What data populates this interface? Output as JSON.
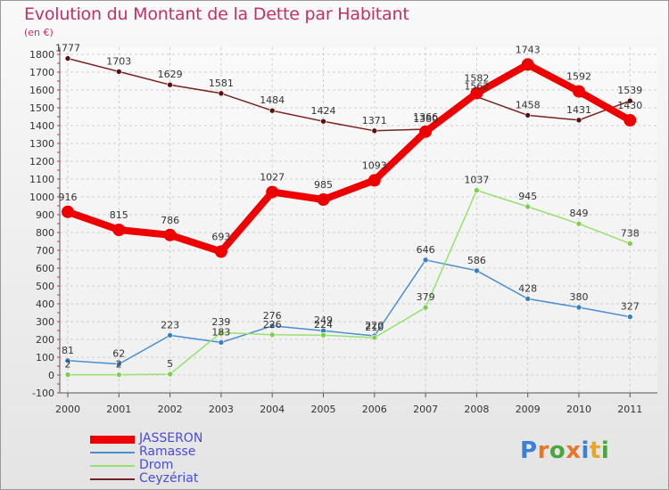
{
  "title": "Evolution du Montant de la Dette par Habitant",
  "unit": "(en €)",
  "logo": {
    "letters": [
      "P",
      "r",
      "o",
      "x",
      "i",
      "t",
      "i"
    ],
    "colors": [
      "#3a7fd8",
      "#e8762a",
      "#4aa640",
      "#e8762a",
      "#3a7fd8",
      "#e8a52a",
      "#4aa640"
    ]
  },
  "chart_data": {
    "type": "line",
    "x": [
      "2000",
      "2001",
      "2002",
      "2003",
      "2004",
      "2005",
      "2006",
      "2007",
      "2008",
      "2009",
      "2010",
      "2011"
    ],
    "ylim": [
      -100,
      1800
    ],
    "yticks": [
      -100,
      0,
      100,
      200,
      300,
      400,
      500,
      600,
      700,
      800,
      900,
      1000,
      1100,
      1200,
      1300,
      1400,
      1500,
      1600,
      1700,
      1800
    ],
    "grid": true,
    "legend_position": "bottom-left",
    "series": [
      {
        "name": "Ceyzériat",
        "color": "#7a2020",
        "values": [
          1777,
          1703,
          1629,
          1581,
          1484,
          1424,
          1371,
          1380,
          1562,
          1458,
          1431,
          1539
        ]
      },
      {
        "name": "Ramasse",
        "color": "#4a8ed0",
        "values": [
          81,
          62,
          223,
          183,
          276,
          249,
          220,
          646,
          586,
          428,
          380,
          327
        ]
      },
      {
        "name": "Drom",
        "color": "#98e070",
        "values": [
          2,
          2,
          5,
          239,
          226,
          224,
          210,
          379,
          1037,
          945,
          849,
          738
        ]
      },
      {
        "name": "JASSERON",
        "color": "#ee0000",
        "values": [
          916,
          815,
          786,
          693,
          1027,
          985,
          1093,
          1366,
          1582,
          1743,
          1592,
          1430
        ]
      }
    ],
    "legend_order": [
      "JASSERON",
      "Ramasse",
      "Drom",
      "Ceyzériat"
    ]
  }
}
